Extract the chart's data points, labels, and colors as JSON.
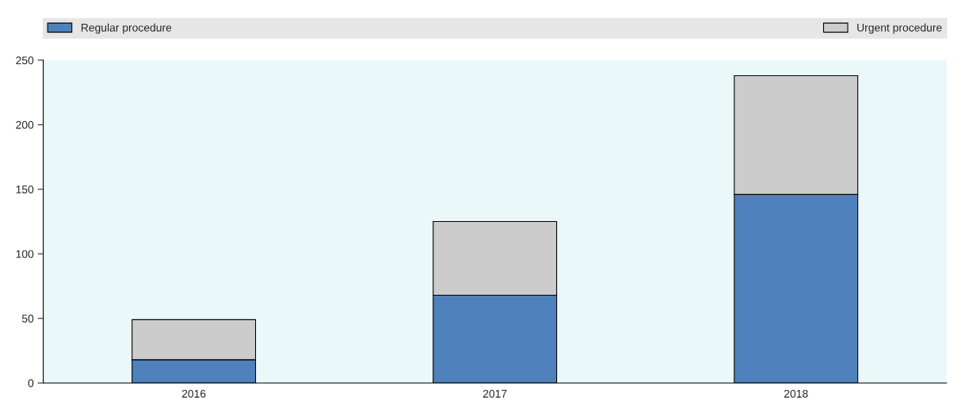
{
  "chart_data": {
    "type": "bar",
    "stacked": true,
    "categories": [
      "2016",
      "2017",
      "2018"
    ],
    "series": [
      {
        "name": "Regular procedure",
        "color": "#4f81bd",
        "values": [
          18,
          68,
          146
        ]
      },
      {
        "name": "Urgent procedure",
        "color": "#cccccc",
        "values": [
          31,
          57,
          92
        ]
      }
    ],
    "ylim": [
      0,
      250
    ],
    "yticks": [
      0,
      50,
      100,
      150,
      200,
      250
    ],
    "grid": false,
    "legend": "top"
  }
}
